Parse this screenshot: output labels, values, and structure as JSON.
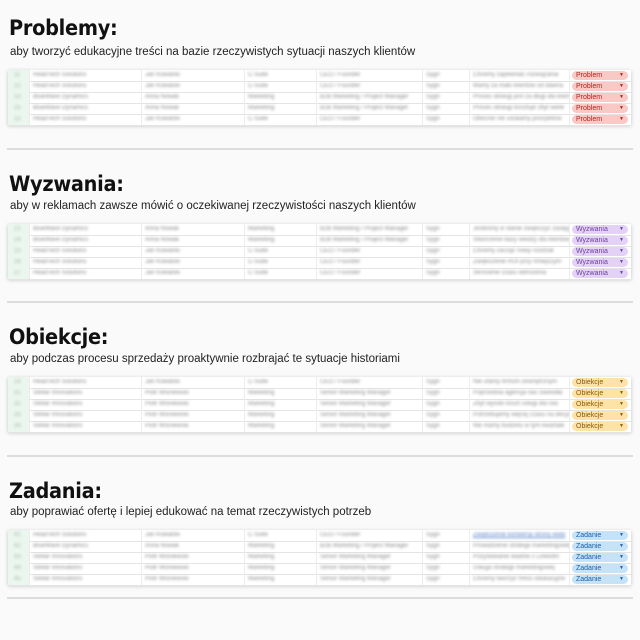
{
  "sections": [
    {
      "title": "Problemy:",
      "subtitle": "aby tworzyć edukacyjne treści na bazie rzeczywistych sytuacji naszych klientów",
      "tag_label": "Problem",
      "tag_bg": "#f9c9c6",
      "tag_fg": "#b42318",
      "rows": [
        {
          "num": "11",
          "company": "HeadTech Solutions",
          "person": "Jan Kowalski",
          "dept": "C-Suite",
          "role": "CEO / Founder",
          "source": "Sygn",
          "desc": "Chcemy zapewniać rozwiązania"
        },
        {
          "num": "22",
          "company": "HeadTech Solutions",
          "person": "Jan Kowalski",
          "dept": "C-Suite",
          "role": "CEO / Founder",
          "source": "Sygn",
          "desc": "Mamy za mało klientów od dawna"
        },
        {
          "num": "13",
          "company": "BlueWave Dynamics",
          "person": "Anna Nowak",
          "dept": "Marketing",
          "role": "B2B Marketing / Project Manager",
          "source": "Sygn",
          "desc": "Proces obsługi jest za długi dla klienta"
        },
        {
          "num": "25",
          "company": "BlueWave Dynamics",
          "person": "Anna Nowak",
          "dept": "Marketing",
          "role": "B2B Marketing / Project Manager",
          "source": "Sygn",
          "desc": "Proces obsługi kosztuje zbyt wiele"
        },
        {
          "num": "12",
          "company": "HeadTech Solutions",
          "person": "Jan Kowalski",
          "dept": "C-Suite",
          "role": "CEO / Founder",
          "source": "Sygn",
          "desc": "Obecnie nie ustalamy priorytetów"
        }
      ]
    },
    {
      "title": "Wyzwania:",
      "subtitle": "aby w reklamach zawsze mówić o oczekiwanej rzeczywistości naszych klientów",
      "tag_label": "Wyzwania",
      "tag_bg": "#e3d2f5",
      "tag_fg": "#6b3fa0",
      "rows": [
        {
          "num": "21",
          "company": "BlueWave Dynamics",
          "person": "Anna Nowak",
          "dept": "Marketing",
          "role": "B2B Marketing / Project Manager",
          "source": "Sygn",
          "desc": "Jesteśmy w stanie zwiększyć zasięg"
        },
        {
          "num": "24",
          "company": "BlueWave Dynamics",
          "person": "Anna Nowak",
          "dept": "Marketing",
          "role": "B2B Marketing / Project Manager",
          "source": "Sygn",
          "desc": "Stworzenie bazy wiedzy dla klientów"
        },
        {
          "num": "15",
          "company": "HeadTech Solutions",
          "person": "Jan Kowalski",
          "dept": "C-Suite",
          "role": "CEO / Founder",
          "source": "Sygn",
          "desc": "Chcemy zacząć nowy rozdział"
        },
        {
          "num": "26",
          "company": "HeadTech Solutions",
          "person": "Jan Kowalski",
          "dept": "C-Suite",
          "role": "CEO / Founder",
          "source": "Sygn",
          "desc": "Zwiększenie ROI przy mniejszym"
        },
        {
          "num": "27",
          "company": "HeadTech Solutions",
          "person": "Jan Kowalski",
          "dept": "C-Suite",
          "role": "CEO / Founder",
          "source": "Sygn",
          "desc": "Skrócenie czasu wdrożenia"
        }
      ]
    },
    {
      "title": "Obiekcje:",
      "subtitle": "aby podczas procesu sprzedaży proaktywnie rozbrajać te sytuacje historiami",
      "tag_label": "Obiekcje",
      "tag_bg": "#fde3a7",
      "tag_fg": "#8a5a00",
      "rows": [
        {
          "num": "14",
          "company": "HeadTech Solutions",
          "person": "Jan Kowalski",
          "dept": "C-Suite",
          "role": "CEO / Founder",
          "source": "Sygn",
          "desc": "Nie ufamy firmom zewnętrznym"
        },
        {
          "num": "31",
          "company": "Stellar Innovations",
          "person": "Piotr Wiśniewski",
          "dept": "Marketing",
          "role": "Senior Marketing Manager",
          "source": "Sygn",
          "desc": "Poprzednia agencja nas zawiodła"
        },
        {
          "num": "32",
          "company": "Stellar Innovations",
          "person": "Piotr Wiśniewski",
          "dept": "Marketing",
          "role": "Senior Marketing Manager",
          "source": "Sygn",
          "desc": "Zbyt wysoki koszt usługi dla nas"
        },
        {
          "num": "33",
          "company": "Stellar Innovations",
          "person": "Piotr Wiśniewski",
          "dept": "Marketing",
          "role": "Senior Marketing Manager",
          "source": "Sygn",
          "desc": "Potrzebujemy więcej czasu na decyzję"
        },
        {
          "num": "34",
          "company": "Stellar Innovations",
          "person": "Piotr Wiśniewski",
          "dept": "Marketing",
          "role": "Senior Marketing Manager",
          "source": "Sygn",
          "desc": "Nie mamy budżetu w tym kwartale"
        }
      ]
    },
    {
      "title": "Zadania:",
      "subtitle": "aby poprawiać ofertę i lepiej edukować na temat rzeczywistych potrzeb",
      "tag_label": "Zadanie",
      "tag_bg": "#c6e2f7",
      "tag_fg": "#1d5fa8",
      "rows": [
        {
          "num": "41",
          "company": "HeadTech Solutions",
          "person": "Jan Kowalski",
          "dept": "C-Suite",
          "role": "CEO / Founder",
          "source": "Sygn",
          "desc": "Zwiększenie konwersji strony www",
          "link": true
        },
        {
          "num": "42",
          "company": "BlueWave Dynamics",
          "person": "Anna Nowak",
          "dept": "Marketing",
          "role": "B2B Marketing / Project Manager",
          "source": "Sygn",
          "desc": "Prowadzenie strategii marketingowej"
        },
        {
          "num": "43",
          "company": "Stellar Innovations",
          "person": "Piotr Wiśniewski",
          "dept": "Marketing",
          "role": "Senior Marketing Manager",
          "source": "Sygn",
          "desc": "Pozyskiwanie leadów z LinkedIn"
        },
        {
          "num": "44",
          "company": "Stellar Innovations",
          "person": "Piotr Wiśniewski",
          "dept": "Marketing",
          "role": "Senior Marketing Manager",
          "source": "Sygn",
          "desc": "Usługa strategii marketingowej"
        },
        {
          "num": "45",
          "company": "Stellar Innovations",
          "person": "Piotr Wiśniewski",
          "dept": "Marketing",
          "role": "Senior Marketing Manager",
          "source": "Sygn",
          "desc": "Chcemy tworzyć treści edukacyjne"
        }
      ]
    }
  ],
  "icons": {
    "dropdown": "▼"
  }
}
